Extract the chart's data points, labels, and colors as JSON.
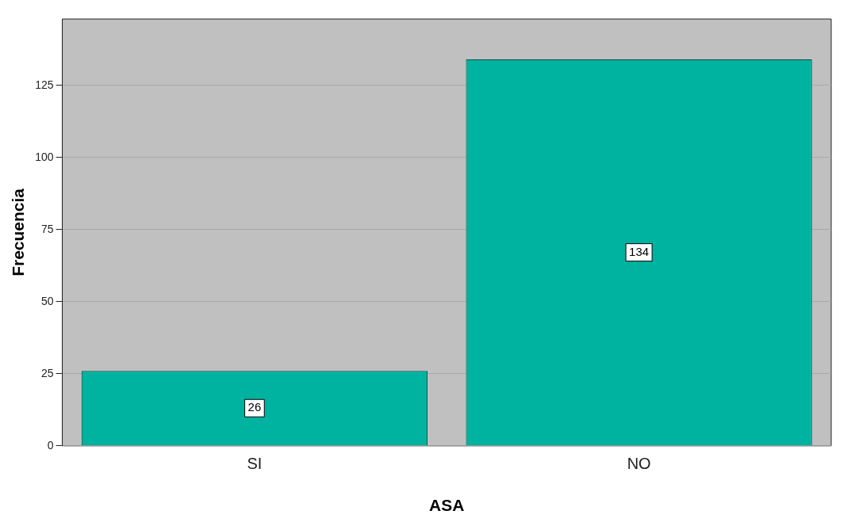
{
  "chart_data": {
    "type": "bar",
    "xlabel": "ASA",
    "ylabel": "Frecuencia",
    "categories": [
      "SI",
      "NO"
    ],
    "values": [
      26,
      134
    ],
    "color": "#00b2a0",
    "ylim": [
      0,
      148
    ],
    "yticks": [
      0,
      25,
      50,
      75,
      100,
      125
    ],
    "grid": "y",
    "legend": false,
    "data_labels": true
  }
}
